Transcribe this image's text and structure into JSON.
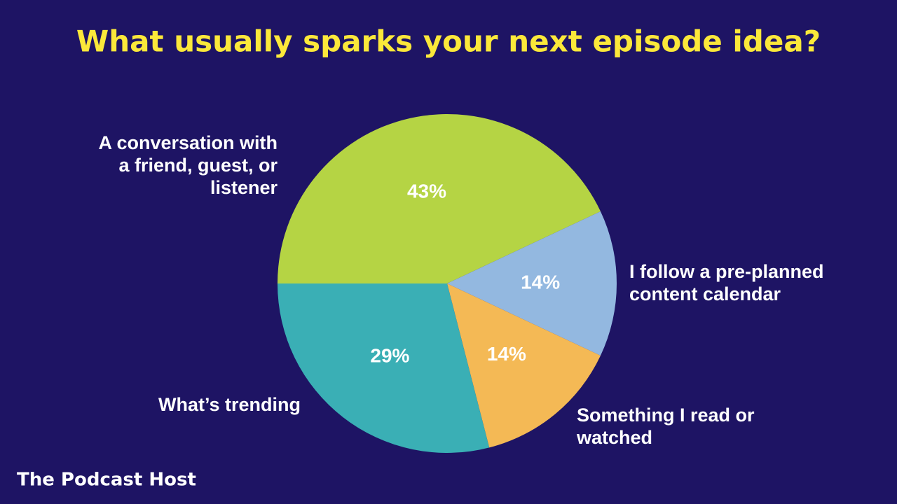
{
  "chart_data": {
    "type": "pie",
    "title": "What usually sparks your next episode idea?",
    "categories": [
      "A conversation with a friend, guest, or listener",
      "I follow a pre-planned content calendar",
      "Something I read or watched",
      "What’s trending"
    ],
    "values": [
      43,
      14,
      14,
      29
    ],
    "value_labels": [
      "43%",
      "14%",
      "14%",
      "29%"
    ],
    "colors": [
      "#b5d444",
      "#93b8e0",
      "#f4b955",
      "#3aafb5"
    ],
    "start_angle": 180,
    "direction": "clockwise"
  },
  "footer": "The Podcast Host"
}
